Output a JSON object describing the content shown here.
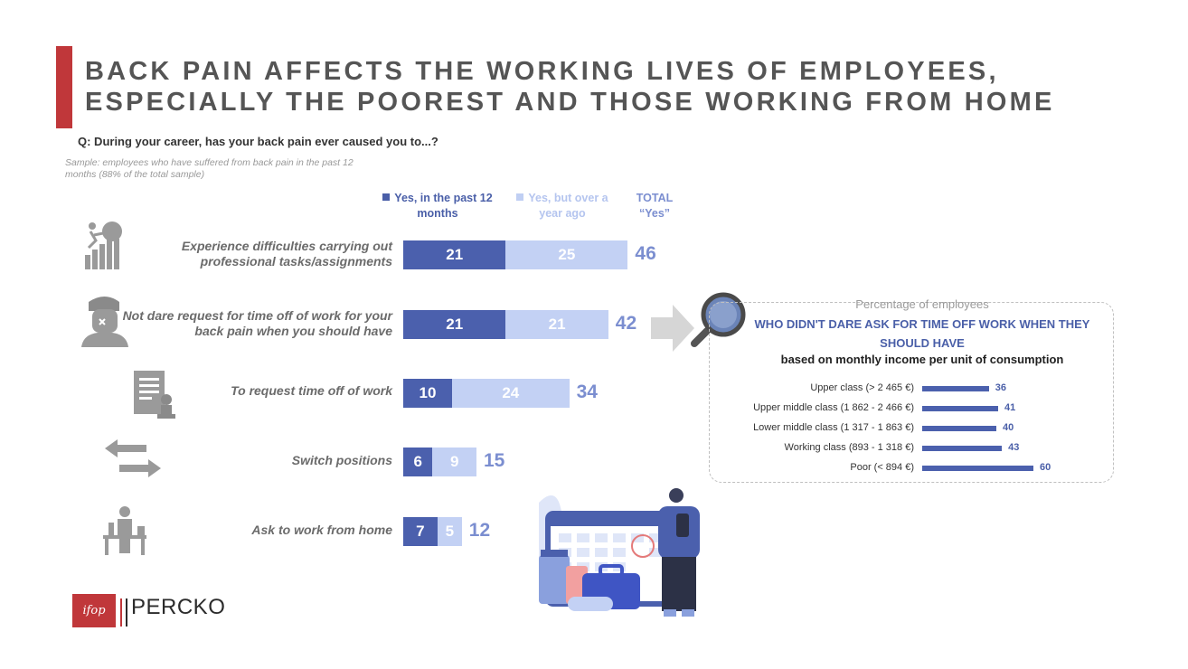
{
  "title": "BACK PAIN AFFECTS THE WORKING LIVES OF EMPLOYEES, ESPECIALLY THE POOREST AND THOSE WORKING FROM HOME",
  "question": "Q: During your career, has your back pain ever caused you to...?",
  "sample": "Sample: employees who have suffered from back pain in the past 12 months (88% of the total sample)",
  "legend": {
    "series_a": "Yes, in the past 12 months",
    "series_b": "Yes, but over a year ago",
    "total": "TOTAL “Yes”"
  },
  "colors": {
    "accent": "#c0373a",
    "series_a": "#4b60ad",
    "series_b": "#c3d1f4",
    "total": "#7b8ed0"
  },
  "chart_data": [
    {
      "type": "bar",
      "orientation": "horizontal",
      "stacked": true,
      "categories": [
        "Experience difficulties carrying out professional tasks/assignments",
        "Not dare request for time off of work for your back pain when you should have",
        "To request time off of work",
        "Switch positions",
        "Ask to work from home"
      ],
      "series": [
        {
          "name": "Yes, in the past 12 months",
          "values": [
            21,
            21,
            10,
            6,
            7
          ]
        },
        {
          "name": "Yes, but over a year ago",
          "values": [
            25,
            21,
            24,
            9,
            5
          ]
        }
      ],
      "totals": [
        46,
        42,
        34,
        15,
        12
      ],
      "icons": [
        "climbing-stairs-icon",
        "stressed-person-icon",
        "document-request-icon",
        "switch-arrows-icon",
        "home-office-icon"
      ],
      "legend_position": "top"
    },
    {
      "type": "bar",
      "orientation": "horizontal",
      "supertitle": "Percentage of employees",
      "title": "WHO DIDN'T DARE ASK FOR TIME OFF WORK WHEN THEY SHOULD HAVE",
      "subtitle": "based on monthly income per unit of consumption",
      "categories": [
        "Upper class (> 2 465 €)",
        "Upper middle class (1 862 - 2 466 €)",
        "Lower middle class (1 317 - 1 863 €)",
        "Working class (893 - 1 318 €)",
        "Poor (< 894 €)"
      ],
      "values": [
        36,
        41,
        40,
        43,
        60
      ]
    }
  ],
  "logos": {
    "ifop": "ifop",
    "percko": "PERCKO"
  }
}
